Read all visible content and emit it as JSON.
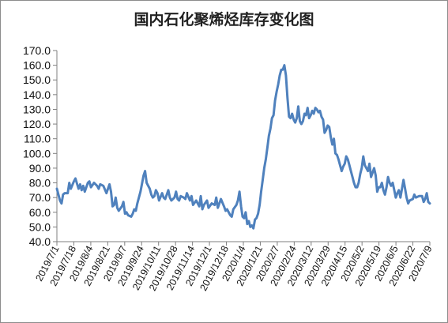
{
  "chart_data": {
    "type": "line",
    "title": "国内石化聚烯烃库存变化图",
    "xlabel": "",
    "ylabel": "",
    "ylim": [
      40,
      170
    ],
    "yticks": [
      "40.0",
      "50.0",
      "60.0",
      "70.0",
      "80.0",
      "90.0",
      "100.0",
      "110.0",
      "120.0",
      "130.0",
      "140.0",
      "150.0",
      "160.0",
      "170.0"
    ],
    "xticks": [
      "2019/7/1",
      "2019/7/18",
      "2019/8/4",
      "2019/8/21",
      "2019/9/7",
      "2019/9/24",
      "2019/10/11",
      "2019/10/28",
      "2019/11/14",
      "2019/12/1",
      "2019/12/18",
      "2020/1/4",
      "2020/1/21",
      "2020/2/7",
      "2020/2/24",
      "2020/3/12",
      "2020/3/29",
      "2020/4/15",
      "2020/5/2",
      "2020/5/19",
      "2020/6/5",
      "2020/6/22",
      "2020/7/9"
    ],
    "grid": false,
    "line_color": "#4f81bd",
    "series": [
      {
        "values": [
          [
            0,
            76
          ],
          [
            2,
            68
          ],
          [
            3,
            66
          ],
          [
            4,
            72
          ],
          [
            5,
            73
          ],
          [
            7,
            73
          ],
          [
            8,
            80
          ],
          [
            9,
            76
          ],
          [
            11,
            81
          ],
          [
            12,
            83
          ],
          [
            14,
            76
          ],
          [
            15,
            79
          ],
          [
            16,
            75
          ],
          [
            17,
            78
          ],
          [
            18,
            74
          ],
          [
            19,
            77
          ],
          [
            20,
            80
          ],
          [
            21,
            81
          ],
          [
            22,
            77
          ],
          [
            24,
            80
          ],
          [
            26,
            78
          ],
          [
            27,
            76
          ],
          [
            28,
            79
          ],
          [
            30,
            78
          ],
          [
            32,
            73
          ],
          [
            34,
            79
          ],
          [
            35,
            74
          ],
          [
            36,
            64
          ],
          [
            37,
            65
          ],
          [
            38,
            70
          ],
          [
            39,
            63
          ],
          [
            40,
            61
          ],
          [
            42,
            64
          ],
          [
            43,
            67
          ],
          [
            44,
            59
          ],
          [
            45,
            60
          ],
          [
            46,
            58
          ],
          [
            48,
            57
          ],
          [
            49,
            59
          ],
          [
            50,
            62
          ],
          [
            51,
            61
          ],
          [
            52,
            66
          ],
          [
            54,
            74
          ],
          [
            56,
            85
          ],
          [
            57,
            88
          ],
          [
            58,
            80
          ],
          [
            60,
            76
          ],
          [
            61,
            72
          ],
          [
            62,
            70
          ],
          [
            63,
            71
          ],
          [
            64,
            75
          ],
          [
            65,
            73
          ],
          [
            66,
            68
          ],
          [
            68,
            73
          ],
          [
            69,
            70
          ],
          [
            70,
            69
          ],
          [
            71,
            72
          ],
          [
            72,
            75
          ],
          [
            73,
            70
          ],
          [
            74,
            68
          ],
          [
            76,
            70
          ],
          [
            77,
            74
          ],
          [
            78,
            69
          ],
          [
            79,
            68
          ],
          [
            80,
            71
          ],
          [
            82,
            70
          ],
          [
            83,
            69
          ],
          [
            84,
            73
          ],
          [
            86,
            68
          ],
          [
            87,
            71
          ],
          [
            88,
            65
          ],
          [
            90,
            68
          ],
          [
            92,
            64
          ],
          [
            93,
            71
          ],
          [
            94,
            62
          ],
          [
            95,
            65
          ],
          [
            97,
            68
          ],
          [
            98,
            63
          ],
          [
            100,
            66
          ],
          [
            102,
            65
          ],
          [
            103,
            70
          ],
          [
            104,
            63
          ],
          [
            105,
            66
          ],
          [
            106,
            69
          ],
          [
            108,
            64
          ],
          [
            109,
            61
          ],
          [
            110,
            62
          ],
          [
            112,
            58
          ],
          [
            113,
            57
          ],
          [
            114,
            62
          ],
          [
            116,
            65
          ],
          [
            117,
            68
          ],
          [
            118,
            74
          ],
          [
            119,
            64
          ],
          [
            120,
            57
          ],
          [
            121,
            56
          ],
          [
            122,
            60
          ],
          [
            123,
            52
          ],
          [
            124,
            54
          ],
          [
            125,
            50
          ],
          [
            126,
            51
          ],
          [
            127,
            49
          ],
          [
            128,
            55
          ],
          [
            129,
            56
          ],
          [
            130,
            59
          ],
          [
            131,
            65
          ],
          [
            132,
            74
          ],
          [
            133,
            82
          ],
          [
            134,
            90
          ],
          [
            135,
            96
          ],
          [
            136,
            104
          ],
          [
            137,
            112
          ],
          [
            138,
            117
          ],
          [
            139,
            124
          ],
          [
            140,
            126
          ],
          [
            141,
            136
          ],
          [
            142,
            142
          ],
          [
            143,
            147
          ],
          [
            144,
            153
          ],
          [
            145,
            157
          ],
          [
            146,
            157
          ],
          [
            147,
            160
          ],
          [
            148,
            153
          ],
          [
            149,
            138
          ],
          [
            150,
            125
          ],
          [
            151,
            124
          ],
          [
            152,
            127
          ],
          [
            153,
            123
          ],
          [
            154,
            121
          ],
          [
            155,
            124
          ],
          [
            156,
            132
          ],
          [
            157,
            122
          ],
          [
            158,
            120
          ],
          [
            159,
            122
          ],
          [
            160,
            127
          ],
          [
            161,
            126
          ],
          [
            162,
            131
          ],
          [
            163,
            124
          ],
          [
            164,
            126
          ],
          [
            165,
            129
          ],
          [
            166,
            127
          ],
          [
            167,
            131
          ],
          [
            168,
            130
          ],
          [
            169,
            128
          ],
          [
            170,
            129
          ],
          [
            171,
            125
          ],
          [
            172,
            123
          ],
          [
            173,
            114
          ],
          [
            174,
            116
          ],
          [
            175,
            119
          ],
          [
            176,
            118
          ],
          [
            177,
            111
          ],
          [
            178,
            106
          ],
          [
            179,
            110
          ],
          [
            180,
            100
          ],
          [
            181,
            99
          ],
          [
            182,
            96
          ],
          [
            184,
            88
          ],
          [
            185,
            91
          ],
          [
            186,
            93
          ],
          [
            187,
            98
          ],
          [
            188,
            96
          ],
          [
            189,
            92
          ],
          [
            190,
            88
          ],
          [
            191,
            84
          ],
          [
            192,
            80
          ],
          [
            193,
            77
          ],
          [
            194,
            77
          ],
          [
            195,
            80
          ],
          [
            196,
            86
          ],
          [
            197,
            90
          ],
          [
            198,
            98
          ],
          [
            199,
            92
          ],
          [
            200,
            90
          ],
          [
            201,
            88
          ],
          [
            202,
            93
          ],
          [
            203,
            84
          ],
          [
            205,
            90
          ],
          [
            206,
            85
          ],
          [
            207,
            74
          ],
          [
            208,
            77
          ],
          [
            209,
            77
          ],
          [
            210,
            80
          ],
          [
            211,
            75
          ],
          [
            212,
            72
          ],
          [
            213,
            77
          ],
          [
            214,
            84
          ],
          [
            215,
            80
          ],
          [
            216,
            78
          ],
          [
            217,
            80
          ],
          [
            218,
            75
          ],
          [
            219,
            70
          ],
          [
            220,
            73
          ],
          [
            221,
            75
          ],
          [
            222,
            70
          ],
          [
            224,
            82
          ],
          [
            225,
            76
          ],
          [
            226,
            70
          ],
          [
            227,
            66
          ],
          [
            228,
            68
          ],
          [
            230,
            69
          ],
          [
            231,
            72
          ],
          [
            232,
            70
          ],
          [
            234,
            71
          ],
          [
            236,
            71
          ],
          [
            237,
            67
          ],
          [
            238,
            69
          ],
          [
            239,
            73
          ],
          [
            240,
            67
          ],
          [
            241,
            66
          ]
        ]
      }
    ]
  }
}
